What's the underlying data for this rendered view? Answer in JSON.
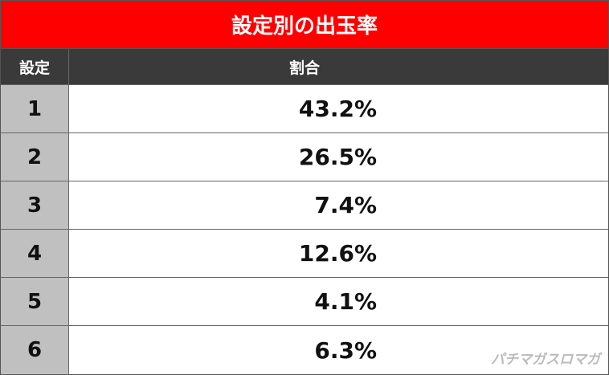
{
  "title": "設定別の出玉率",
  "table": {
    "header": [
      "設定",
      "割合"
    ],
    "rows": [
      [
        "1",
        "43.2%"
      ],
      [
        "2",
        "26.5%"
      ],
      [
        "3",
        "7.4%"
      ],
      [
        "4",
        "12.6%"
      ],
      [
        "5",
        "4.1%"
      ],
      [
        "6",
        "6.3%"
      ]
    ]
  },
  "watermark": "パチマガスロマガ"
}
